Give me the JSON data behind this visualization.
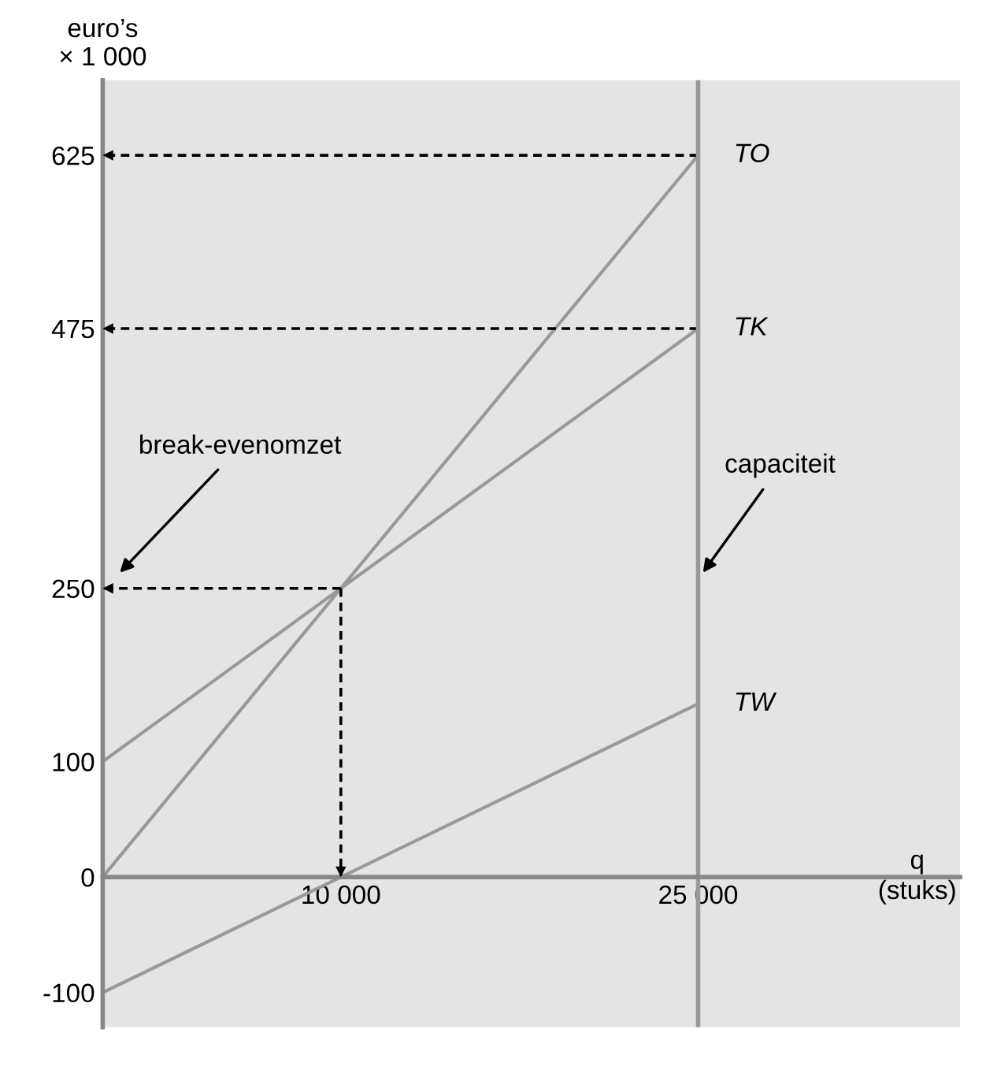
{
  "chart_data": {
    "type": "line",
    "ylabel": "euro’s\n× 1 000",
    "xlabel": "q\n(stuks)",
    "xlim": [
      0,
      36000
    ],
    "ylim": [
      -130,
      690
    ],
    "xticks": [
      {
        "value": 10000,
        "label": "10 000"
      },
      {
        "value": 25000,
        "label": "25 000"
      }
    ],
    "yticks": [
      -100,
      0,
      100,
      250,
      475,
      625
    ],
    "grid": false,
    "series": [
      {
        "name": "TO",
        "color": "#999999",
        "x": [
          0,
          25000
        ],
        "values": [
          0,
          625
        ]
      },
      {
        "name": "TK",
        "color": "#999999",
        "x": [
          0,
          25000
        ],
        "values": [
          100,
          475
        ]
      },
      {
        "name": "TW",
        "color": "#999999",
        "x": [
          0,
          25000
        ],
        "values": [
          -100,
          150
        ]
      },
      {
        "color": "#000000",
        "line_style": "dashed",
        "x": [
          25000,
          0
        ],
        "values": [
          625,
          625
        ]
      },
      {
        "color": "#000000",
        "line_style": "dashed",
        "x": [
          25000,
          0
        ],
        "values": [
          475,
          475
        ]
      },
      {
        "color": "#000000",
        "line_style": "dashed",
        "x": [
          10000,
          0
        ],
        "values": [
          250,
          250
        ]
      },
      {
        "color": "#000000",
        "line_style": "dashed",
        "x": [
          10000,
          10000
        ],
        "values": [
          250,
          0
        ]
      }
    ],
    "ref_lines": [
      {
        "axis": "x",
        "value": 25000,
        "color": "#999999"
      }
    ],
    "annotations": [
      "break-evenomzet",
      "capaciteit"
    ]
  }
}
